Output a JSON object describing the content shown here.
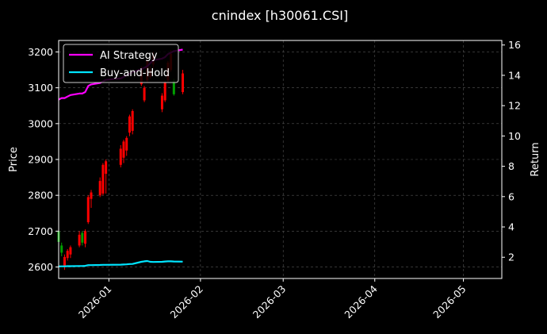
{
  "chart_data": {
    "type": "candlestick+line",
    "title": "cnindex [h30061.CSI]",
    "ylabel": "Price",
    "y2label": "Return",
    "ylim": [
      2568,
      3232
    ],
    "y2lim": [
      0.6,
      16.3
    ],
    "yticks": [
      2600,
      2700,
      2800,
      2900,
      3000,
      3100,
      3200
    ],
    "y2ticks": [
      2,
      4,
      6,
      8,
      10,
      12,
      14,
      16
    ],
    "xlim": [
      "2025-12-15",
      "2026-05-14"
    ],
    "xticks": [
      {
        "date": "2026-01-01",
        "label": "2026-01"
      },
      {
        "date": "2026-02-01",
        "label": "2026-02"
      },
      {
        "date": "2026-03-01",
        "label": "2026-03"
      },
      {
        "date": "2026-04-01",
        "label": "2026-04"
      },
      {
        "date": "2026-05-01",
        "label": "2026-05"
      }
    ],
    "grid": true,
    "legend_position": "top-left",
    "candles": [
      {
        "date": "2025-12-15",
        "open": 2700,
        "high": 2705,
        "low": 2665,
        "close": 2670
      },
      {
        "date": "2025-12-16",
        "open": 2660,
        "high": 2668,
        "low": 2630,
        "close": 2640
      },
      {
        "date": "2025-12-17",
        "open": 2600,
        "high": 2635,
        "low": 2592,
        "close": 2628
      },
      {
        "date": "2025-12-18",
        "open": 2625,
        "high": 2650,
        "low": 2618,
        "close": 2645
      },
      {
        "date": "2025-12-19",
        "open": 2635,
        "high": 2660,
        "low": 2625,
        "close": 2655
      },
      {
        "date": "2025-12-22",
        "open": 2660,
        "high": 2700,
        "low": 2655,
        "close": 2690
      },
      {
        "date": "2025-12-23",
        "open": 2695,
        "high": 2700,
        "low": 2660,
        "close": 2668
      },
      {
        "date": "2025-12-24",
        "open": 2665,
        "high": 2705,
        "low": 2655,
        "close": 2700
      },
      {
        "date": "2025-12-25",
        "open": 2725,
        "high": 2800,
        "low": 2720,
        "close": 2795
      },
      {
        "date": "2025-12-26",
        "open": 2790,
        "high": 2815,
        "low": 2765,
        "close": 2808
      },
      {
        "date": "2025-12-29",
        "open": 2800,
        "high": 2850,
        "low": 2795,
        "close": 2840
      },
      {
        "date": "2025-12-30",
        "open": 2805,
        "high": 2890,
        "low": 2800,
        "close": 2885
      },
      {
        "date": "2025-12-31",
        "open": 2860,
        "high": 2900,
        "low": 2805,
        "close": 2895
      },
      {
        "date": "2026-01-05",
        "open": 2885,
        "high": 2940,
        "low": 2878,
        "close": 2930
      },
      {
        "date": "2026-01-06",
        "open": 2905,
        "high": 2955,
        "low": 2890,
        "close": 2950
      },
      {
        "date": "2026-01-07",
        "open": 2925,
        "high": 2965,
        "low": 2910,
        "close": 2960
      },
      {
        "date": "2026-01-08",
        "open": 2975,
        "high": 3025,
        "low": 2965,
        "close": 3020
      },
      {
        "date": "2026-01-09",
        "open": 2980,
        "high": 3040,
        "low": 2970,
        "close": 3035
      },
      {
        "date": "2026-01-12",
        "open": 3110,
        "high": 3160,
        "low": 3105,
        "close": 3155
      },
      {
        "date": "2026-01-13",
        "open": 3065,
        "high": 3105,
        "low": 3060,
        "close": 3100
      },
      {
        "date": "2026-01-14",
        "open": 3120,
        "high": 3180,
        "low": 3115,
        "close": 3175
      },
      {
        "date": "2026-01-15",
        "open": 3130,
        "high": 3160,
        "low": 3125,
        "close": 3150
      },
      {
        "date": "2026-01-16",
        "open": 3165,
        "high": 3200,
        "low": 3155,
        "close": 3190
      },
      {
        "date": "2026-01-19",
        "open": 3040,
        "high": 3085,
        "low": 3032,
        "close": 3078
      },
      {
        "date": "2026-01-20",
        "open": 3065,
        "high": 3120,
        "low": 3060,
        "close": 3115
      },
      {
        "date": "2026-01-21",
        "open": 3120,
        "high": 3175,
        "low": 3115,
        "close": 3170
      },
      {
        "date": "2026-01-22",
        "open": 3150,
        "high": 3205,
        "low": 3145,
        "close": 3195
      },
      {
        "date": "2026-01-23",
        "open": 3120,
        "high": 3125,
        "low": 3078,
        "close": 3082
      },
      {
        "date": "2026-01-26",
        "open": 3088,
        "high": 3150,
        "low": 3082,
        "close": 3140
      }
    ],
    "series": [
      {
        "name": "AI Strategy",
        "color": "#ff00ff",
        "x": [
          "2025-12-15",
          "2025-12-16",
          "2025-12-17",
          "2025-12-18",
          "2025-12-19",
          "2025-12-22",
          "2025-12-23",
          "2025-12-24",
          "2025-12-25",
          "2025-12-26",
          "2025-12-29",
          "2025-12-30",
          "2025-12-31",
          "2026-01-05",
          "2026-01-06",
          "2026-01-07",
          "2026-01-08",
          "2026-01-09",
          "2026-01-12",
          "2026-01-13",
          "2026-01-14",
          "2026-01-15",
          "2026-01-16",
          "2026-01-19",
          "2026-01-20",
          "2026-01-21",
          "2026-01-22",
          "2026-01-23",
          "2026-01-26"
        ],
        "values": [
          12.4,
          12.5,
          12.5,
          12.6,
          12.7,
          12.8,
          12.8,
          12.9,
          13.3,
          13.4,
          13.5,
          13.6,
          13.7,
          13.8,
          13.9,
          14.0,
          14.1,
          14.2,
          14.4,
          14.5,
          14.6,
          14.8,
          15.0,
          15.1,
          15.2,
          15.4,
          15.5,
          15.6,
          15.7
        ]
      },
      {
        "name": "Buy-and-Hold",
        "color": "#00e5ff",
        "x": [
          "2025-12-15",
          "2025-12-16",
          "2025-12-17",
          "2025-12-18",
          "2025-12-19",
          "2025-12-22",
          "2025-12-23",
          "2025-12-24",
          "2025-12-25",
          "2025-12-26",
          "2025-12-29",
          "2025-12-30",
          "2025-12-31",
          "2026-01-05",
          "2026-01-06",
          "2026-01-07",
          "2026-01-08",
          "2026-01-09",
          "2026-01-12",
          "2026-01-13",
          "2026-01-14",
          "2026-01-15",
          "2026-01-16",
          "2026-01-19",
          "2026-01-20",
          "2026-01-21",
          "2026-01-22",
          "2026-01-23",
          "2026-01-26"
        ],
        "values": [
          1.4,
          1.4,
          1.4,
          1.41,
          1.41,
          1.42,
          1.42,
          1.43,
          1.48,
          1.48,
          1.49,
          1.5,
          1.5,
          1.51,
          1.52,
          1.53,
          1.55,
          1.56,
          1.7,
          1.73,
          1.75,
          1.7,
          1.69,
          1.7,
          1.72,
          1.73,
          1.73,
          1.72,
          1.71
        ]
      }
    ]
  }
}
